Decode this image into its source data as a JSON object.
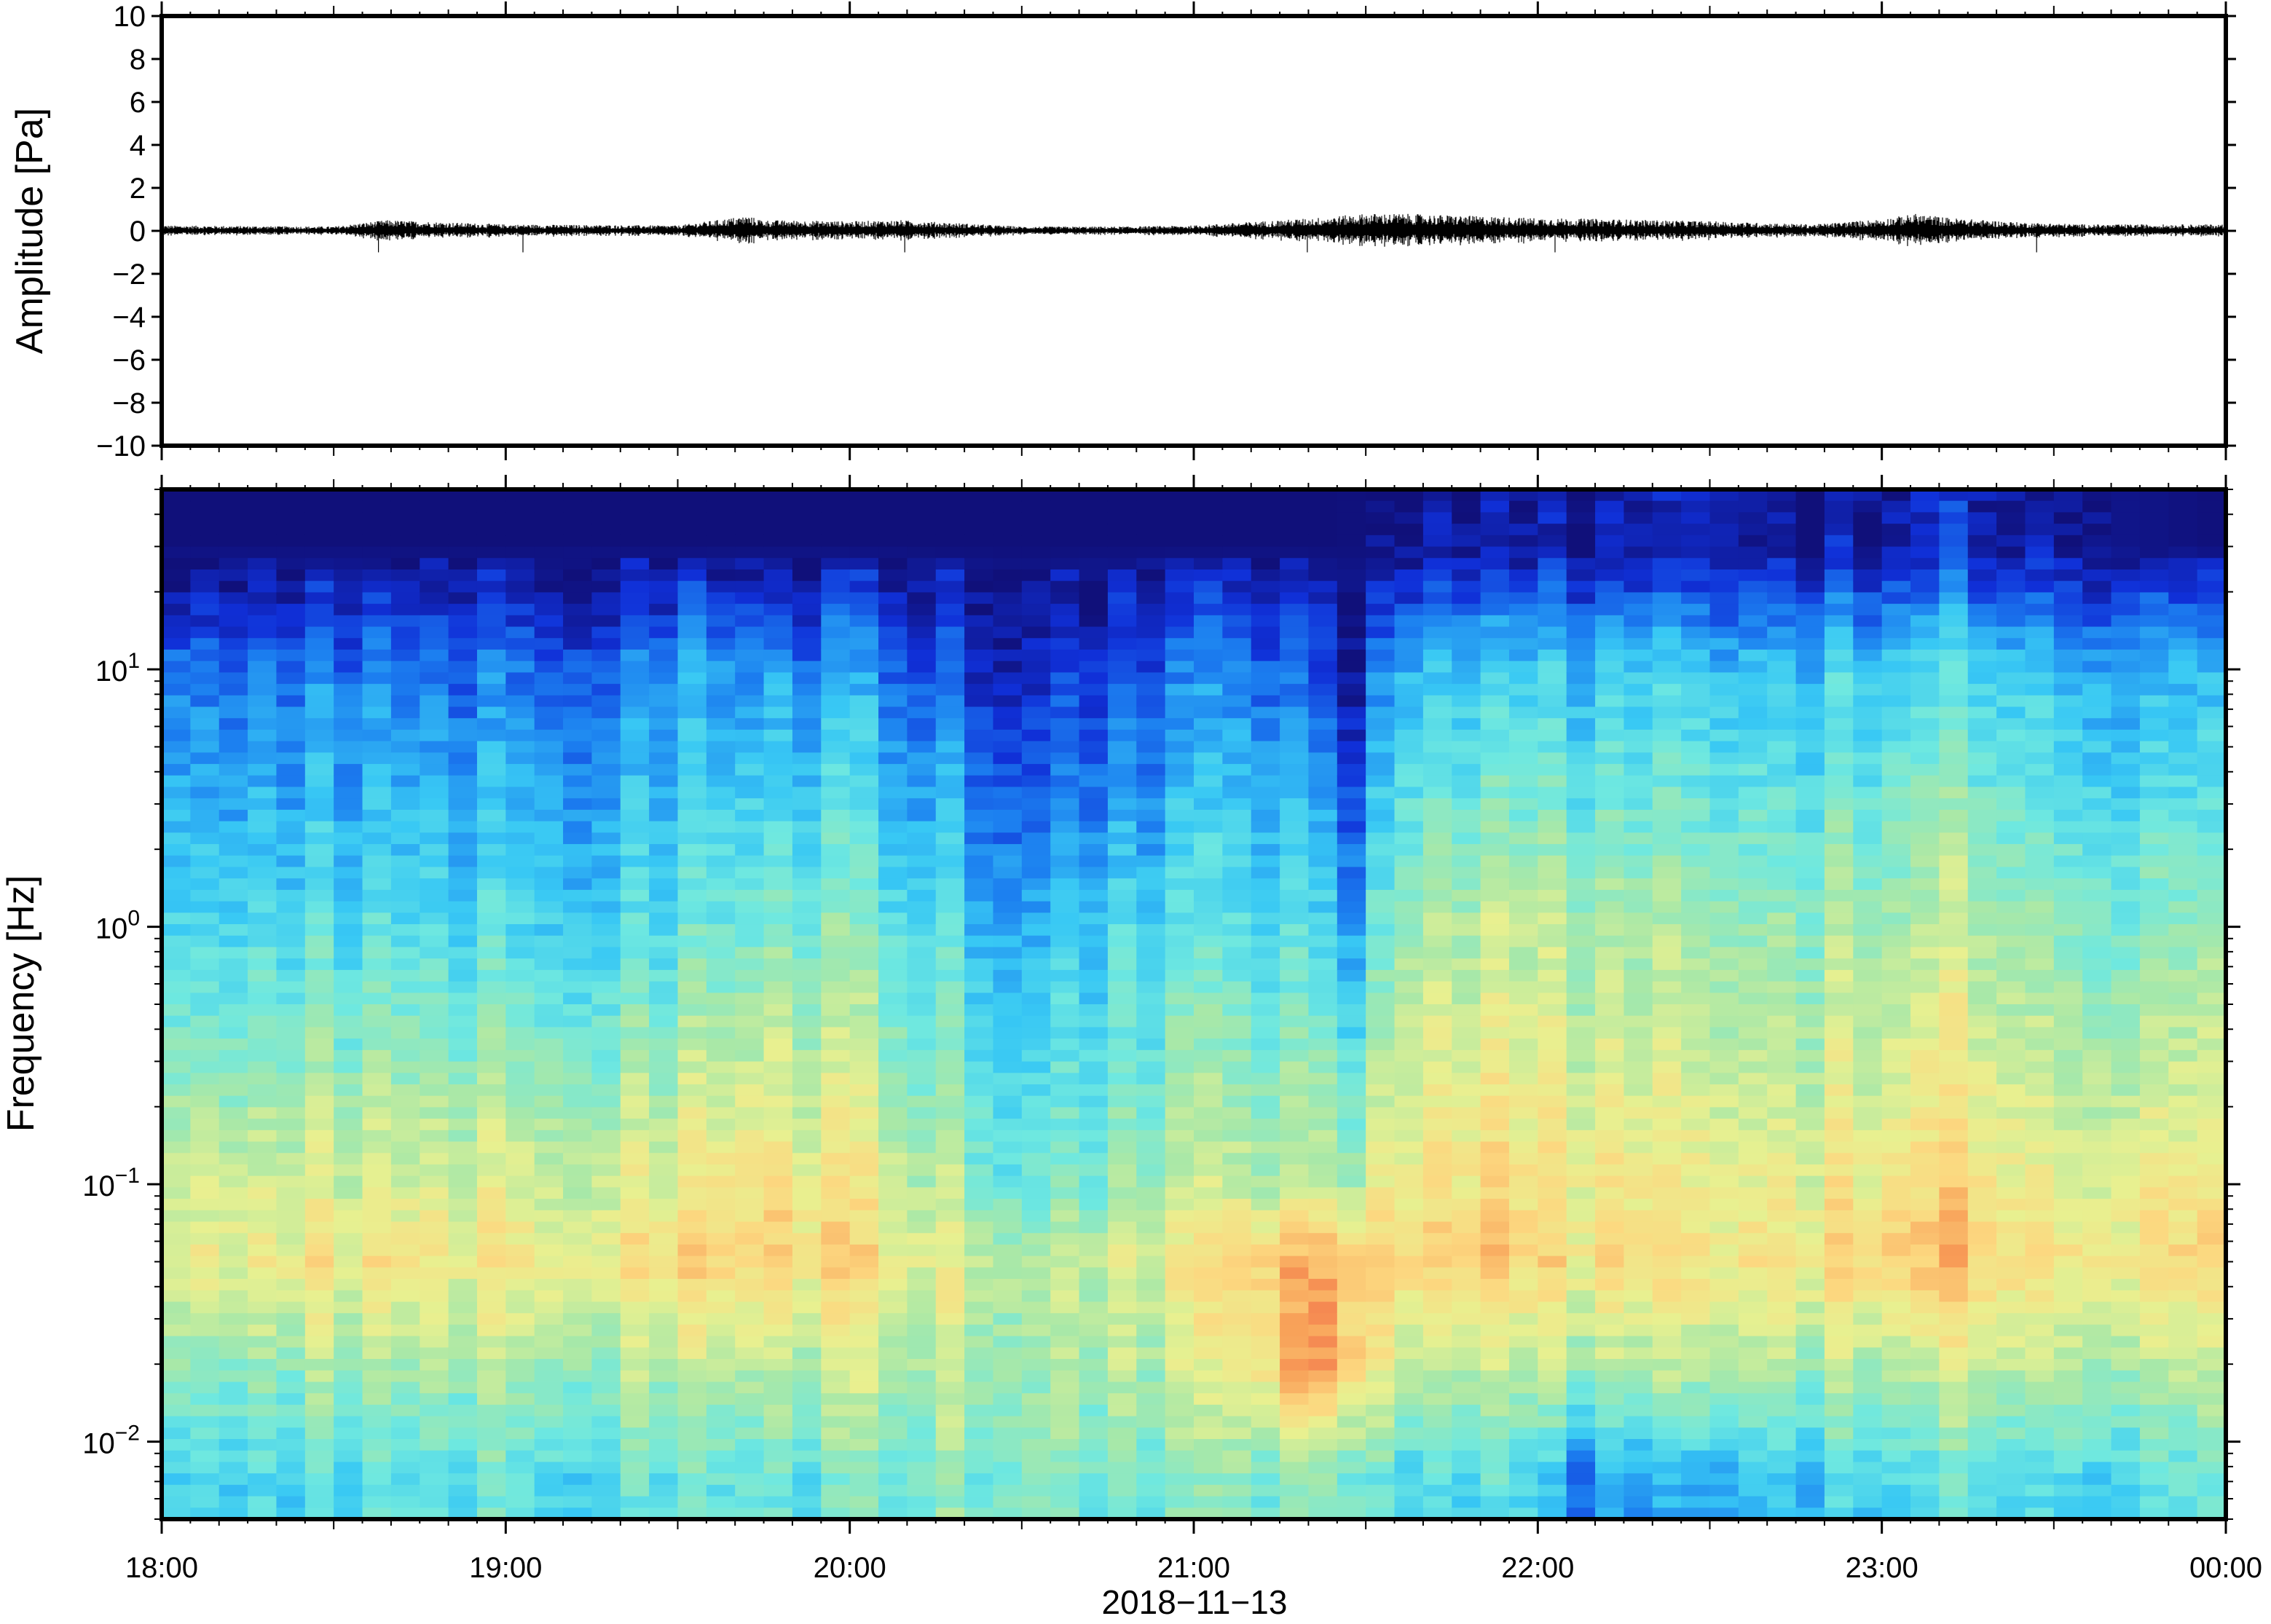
{
  "chart_data": [
    {
      "type": "line",
      "panel": "waveform",
      "ylabel": "Amplitude [Pa]",
      "ylim": [
        -10,
        10
      ],
      "yticks": [
        10,
        8,
        6,
        4,
        2,
        0,
        -2,
        -4,
        -6,
        -8,
        -10
      ],
      "ytick_labels": [
        "10",
        "8",
        "6",
        "4",
        "2",
        "0",
        "−2",
        "−4",
        "−6",
        "−8",
        "−10"
      ],
      "x_range_hours": [
        18,
        24
      ],
      "series": [
        {
          "x_hours": [
            18.0,
            18.5,
            18.65,
            19.0,
            19.5,
            19.7,
            19.75,
            20.0,
            20.15,
            20.5,
            20.8,
            21.0,
            21.25,
            21.35,
            21.5,
            21.6,
            21.8,
            22.0,
            22.2,
            22.5,
            22.8,
            23.0,
            23.1,
            23.2,
            23.4,
            23.6,
            24.0
          ],
          "envelope_pa": [
            0.25,
            0.2,
            0.5,
            0.3,
            0.25,
            0.7,
            0.5,
            0.45,
            0.5,
            0.2,
            0.2,
            0.25,
            0.5,
            0.6,
            0.8,
            0.8,
            0.7,
            0.6,
            0.55,
            0.45,
            0.3,
            0.55,
            0.8,
            0.6,
            0.4,
            0.3,
            0.3
          ]
        }
      ]
    },
    {
      "type": "heatmap",
      "panel": "spectrogram",
      "ylabel": "Frequency [Hz]",
      "ylim_hz": [
        0.005,
        50
      ],
      "yscale": "log",
      "yticks_hz": [
        10,
        1,
        0.1,
        0.01
      ],
      "ytick_base": [
        "10",
        "10",
        "10",
        "10"
      ],
      "ytick_exp": [
        "1",
        "0",
        "−1",
        "−2"
      ],
      "xlabel": "2018−11−13",
      "x_range_hours": [
        18,
        24
      ],
      "xticks_hours": [
        18,
        19,
        20,
        21,
        22,
        23,
        24
      ],
      "xtick_labels": [
        "18:00",
        "19:00",
        "20:00",
        "21:00",
        "22:00",
        "23:00",
        "00:00"
      ],
      "colormap": [
        "#10107a",
        "#1030d8",
        "#1c80f0",
        "#38c8f4",
        "#6ee8e0",
        "#a8e8a8",
        "#e8f090",
        "#fcd880",
        "#f8a058",
        "#f06048"
      ],
      "power_profile": {
        "note": "relative power 0..1 at reference frequencies; rows are time hours",
        "ref_freqs_hz": [
          0.007,
          0.02,
          0.05,
          0.1,
          1,
          10,
          30
        ],
        "rows": [
          {
            "t": 18.0,
            "v": [
              0.4,
              0.55,
              0.72,
              0.65,
              0.42,
              0.25,
              0.0
            ]
          },
          {
            "t": 18.5,
            "v": [
              0.4,
              0.55,
              0.72,
              0.64,
              0.4,
              0.22,
              0.0
            ]
          },
          {
            "t": 19.0,
            "v": [
              0.42,
              0.56,
              0.7,
              0.64,
              0.38,
              0.2,
              0.0
            ]
          },
          {
            "t": 19.5,
            "v": [
              0.42,
              0.58,
              0.74,
              0.66,
              0.4,
              0.24,
              0.0
            ]
          },
          {
            "t": 19.75,
            "v": [
              0.45,
              0.6,
              0.8,
              0.76,
              0.5,
              0.28,
              0.0
            ]
          },
          {
            "t": 20.0,
            "v": [
              0.45,
              0.6,
              0.74,
              0.7,
              0.48,
              0.26,
              0.0
            ]
          },
          {
            "t": 20.5,
            "v": [
              0.5,
              0.55,
              0.58,
              0.45,
              0.3,
              0.08,
              0.0
            ]
          },
          {
            "t": 20.75,
            "v": [
              0.48,
              0.56,
              0.62,
              0.5,
              0.36,
              0.15,
              0.0
            ]
          },
          {
            "t": 21.0,
            "v": [
              0.46,
              0.6,
              0.7,
              0.58,
              0.4,
              0.2,
              0.0
            ]
          },
          {
            "t": 21.2,
            "v": [
              0.5,
              0.75,
              0.82,
              0.6,
              0.42,
              0.22,
              0.0
            ]
          },
          {
            "t": 21.35,
            "v": [
              0.5,
              0.92,
              0.86,
              0.62,
              0.4,
              0.18,
              0.0
            ]
          },
          {
            "t": 21.45,
            "v": [
              0.5,
              0.82,
              0.84,
              0.58,
              0.3,
              0.06,
              0.0
            ]
          },
          {
            "t": 21.6,
            "v": [
              0.42,
              0.62,
              0.8,
              0.74,
              0.58,
              0.34,
              0.05
            ]
          },
          {
            "t": 22.0,
            "v": [
              0.4,
              0.6,
              0.78,
              0.74,
              0.6,
              0.36,
              0.05
            ]
          },
          {
            "t": 22.1,
            "v": [
              0.22,
              0.58,
              0.74,
              0.72,
              0.56,
              0.34,
              0.04
            ]
          },
          {
            "t": 22.5,
            "v": [
              0.28,
              0.56,
              0.7,
              0.66,
              0.52,
              0.32,
              0.03
            ]
          },
          {
            "t": 23.0,
            "v": [
              0.4,
              0.6,
              0.8,
              0.72,
              0.56,
              0.38,
              0.06
            ]
          },
          {
            "t": 23.15,
            "v": [
              0.4,
              0.62,
              0.82,
              0.76,
              0.6,
              0.4,
              0.08
            ]
          },
          {
            "t": 23.5,
            "v": [
              0.38,
              0.58,
              0.72,
              0.66,
              0.5,
              0.32,
              0.03
            ]
          },
          {
            "t": 24.0,
            "v": [
              0.4,
              0.56,
              0.74,
              0.68,
              0.48,
              0.26,
              0.0
            ]
          }
        ]
      }
    }
  ]
}
